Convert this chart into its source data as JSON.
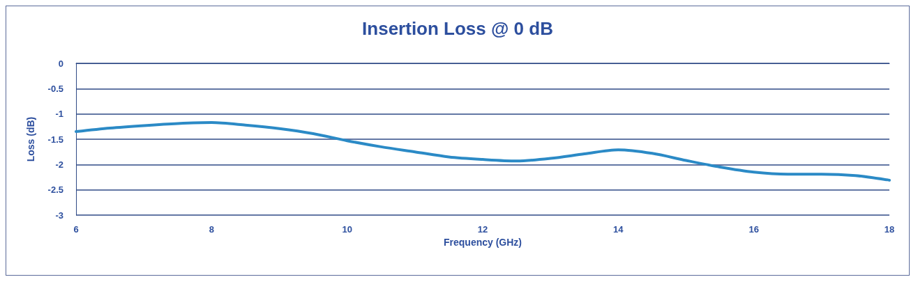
{
  "chart_data": {
    "type": "line",
    "title": "Insertion Loss @ 0 dB",
    "xlabel": "Frequency (GHz)",
    "ylabel": "Loss (dB)",
    "x": [
      6,
      6.5,
      7,
      7.5,
      8,
      8.5,
      9,
      9.5,
      10,
      10.5,
      11,
      11.5,
      12,
      12.5,
      13,
      13.5,
      14,
      14.5,
      15,
      15.5,
      16,
      16.5,
      17,
      17.5,
      18
    ],
    "series": [
      {
        "color": "#2b8ac6",
        "values": [
          -1.35,
          -1.28,
          -1.23,
          -1.19,
          -1.17,
          -1.22,
          -1.29,
          -1.39,
          -1.53,
          -1.65,
          -1.75,
          -1.85,
          -1.9,
          -1.93,
          -1.88,
          -1.79,
          -1.71,
          -1.78,
          -1.92,
          -2.05,
          -2.15,
          -2.19,
          -2.19,
          -2.22,
          -2.31
        ]
      }
    ],
    "xlim": [
      6,
      18
    ],
    "xticks": [
      6,
      8,
      10,
      12,
      14,
      16,
      18
    ],
    "ylim": [
      -3,
      0
    ],
    "yticks": [
      0,
      -0.5,
      -1,
      -1.5,
      -2,
      -2.5,
      -3
    ],
    "grid": "y",
    "marker": "none",
    "line_style": "solid"
  }
}
